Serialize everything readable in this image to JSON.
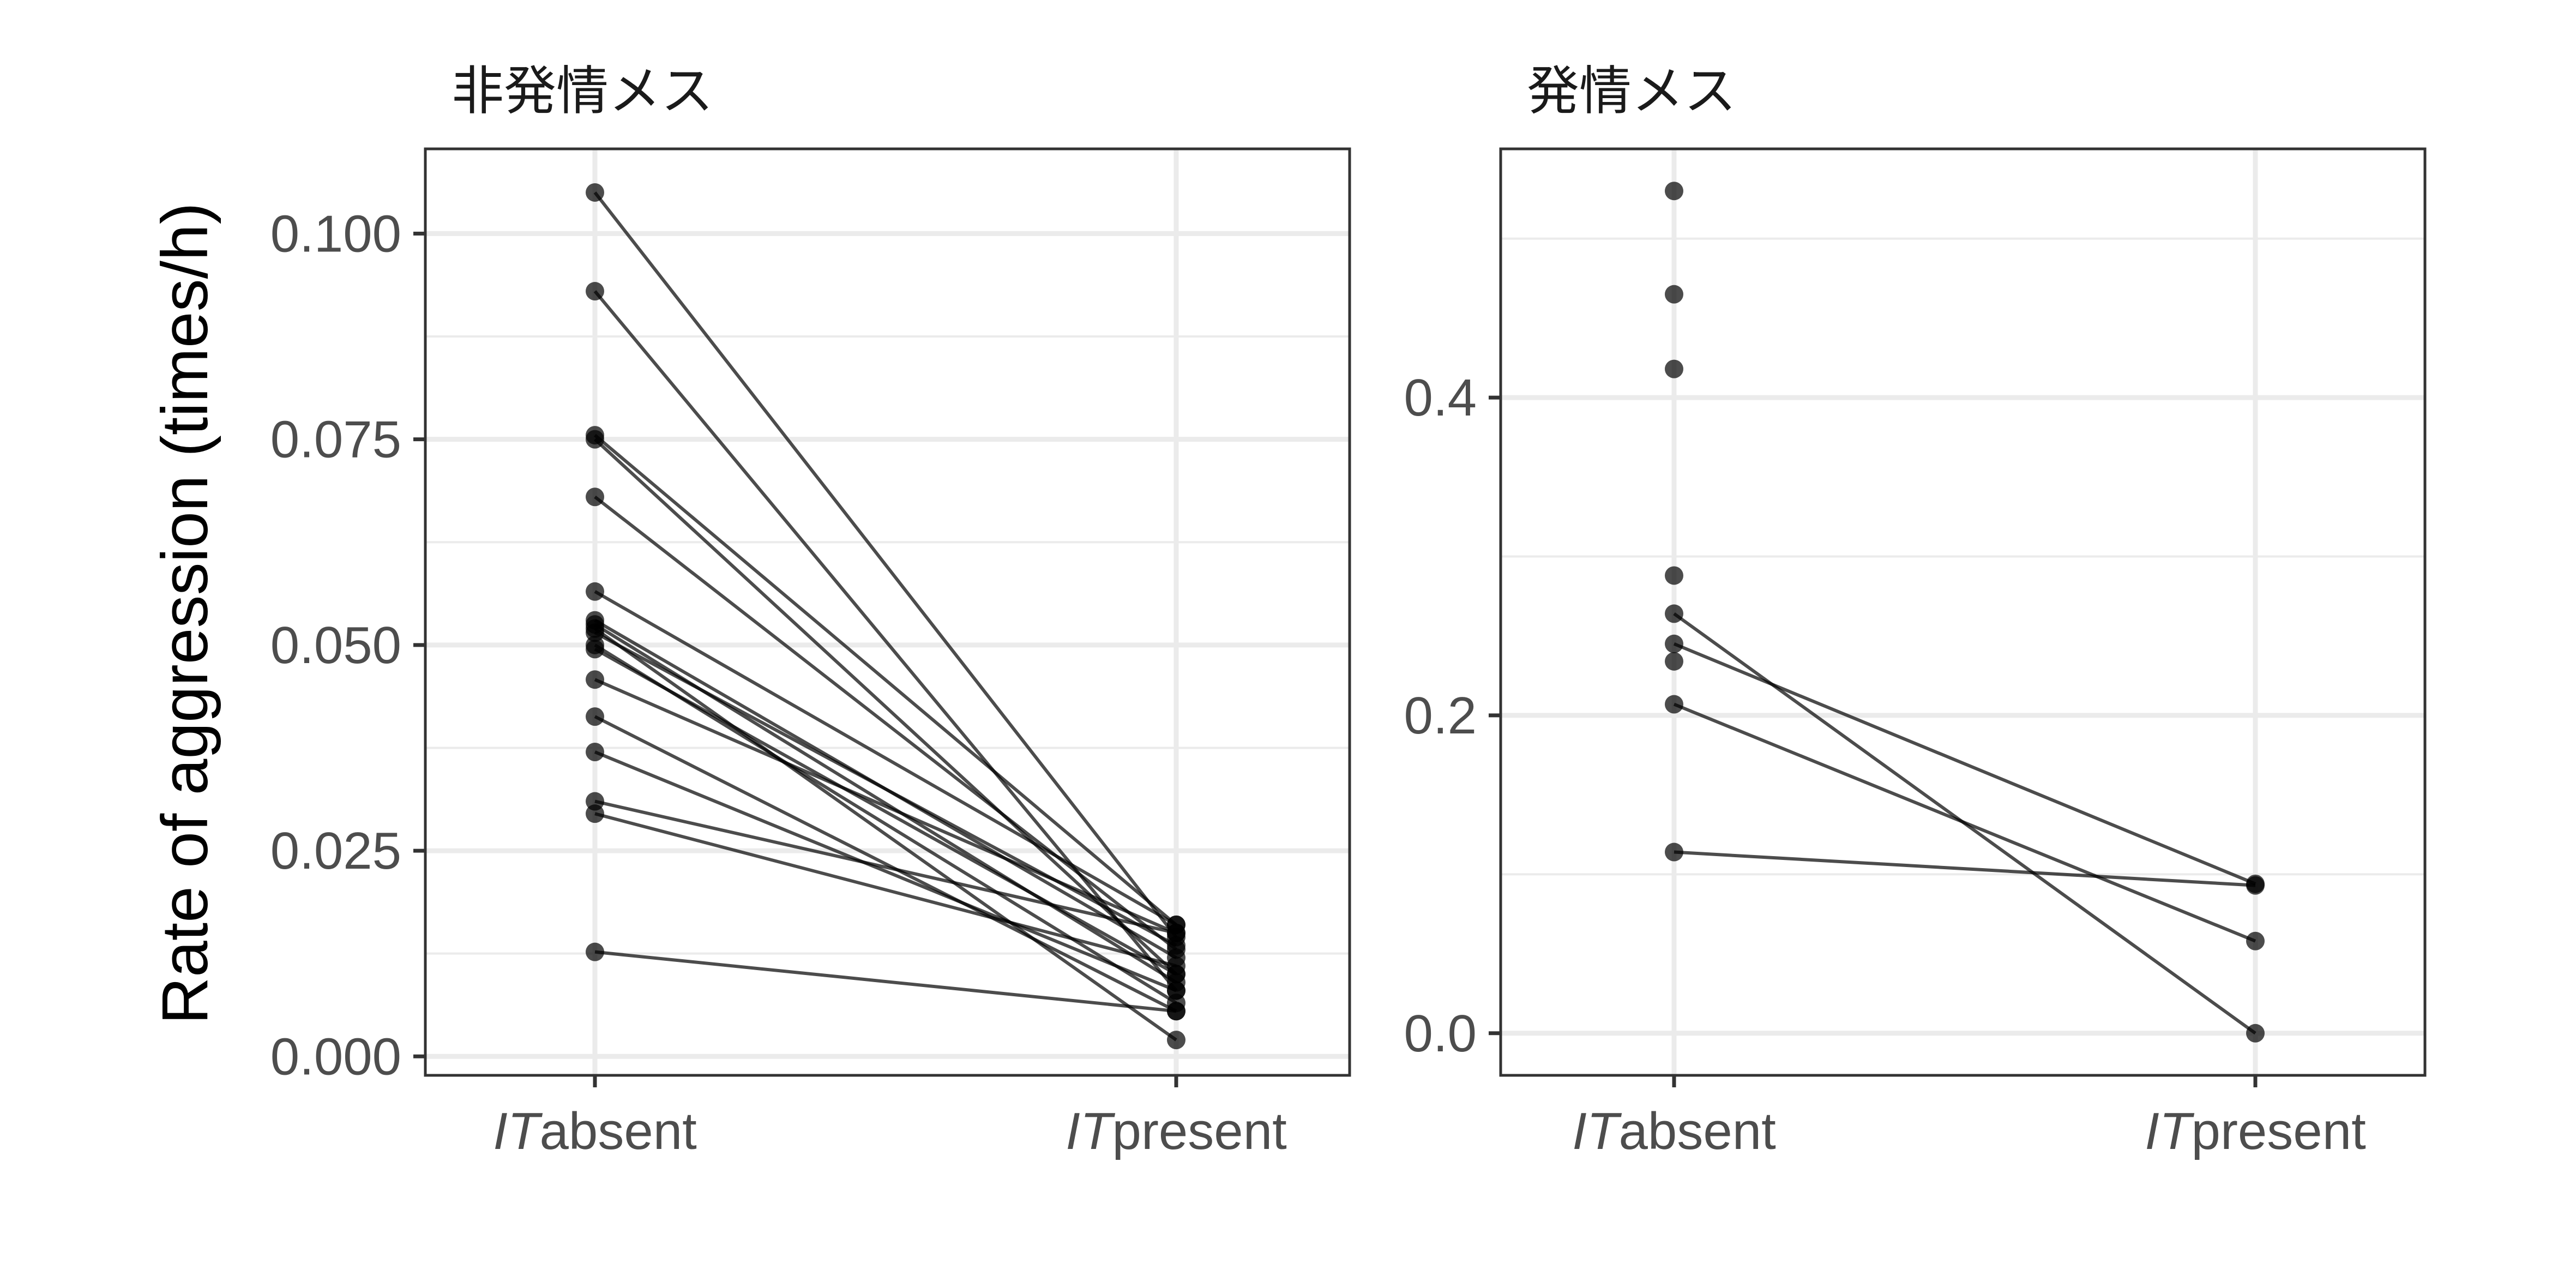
{
  "chart_data": {
    "ylabel": "Rate of aggression (times/h)",
    "panels": [
      {
        "type": "scatter",
        "title": "非発情メス",
        "categories": [
          "IT absent",
          "IT present"
        ],
        "xtick_parts": [
          {
            "italic": "IT",
            "rest": "absent"
          },
          {
            "italic": "IT",
            "rest": "present"
          }
        ],
        "ylim": [
          -0.0023,
          0.1103
        ],
        "yticks": [
          0.0,
          0.025,
          0.05,
          0.075,
          0.1
        ],
        "ytick_labels": [
          "0.000",
          "0.025",
          "0.050",
          "0.075",
          "0.100"
        ],
        "grid": true,
        "absent_only": [],
        "present_only": [],
        "pairs": [
          [
            0.105,
            0.0145
          ],
          [
            0.093,
            0.008
          ],
          [
            0.0755,
            0.016
          ],
          [
            0.075,
            0.01
          ],
          [
            0.068,
            0.013
          ],
          [
            0.0565,
            0.016
          ],
          [
            0.053,
            0.012
          ],
          [
            0.0525,
            0.009
          ],
          [
            0.0515,
            0.0135
          ],
          [
            0.05,
            0.0065
          ],
          [
            0.0495,
            0.01
          ],
          [
            0.0458,
            0.015
          ],
          [
            0.0413,
            0.0055
          ],
          [
            0.037,
            0.008
          ],
          [
            0.031,
            0.015
          ],
          [
            0.0295,
            0.011
          ],
          [
            0.0127,
            0.0055
          ],
          [
            0.052,
            0.002
          ]
        ]
      },
      {
        "type": "scatter",
        "title": "発情メス",
        "categories": [
          "IT absent",
          "IT present"
        ],
        "xtick_parts": [
          {
            "italic": "IT",
            "rest": "absent"
          },
          {
            "italic": "IT",
            "rest": "present"
          }
        ],
        "ylim": [
          -0.0265,
          0.5565
        ],
        "yticks": [
          0.0,
          0.2,
          0.4
        ],
        "ytick_labels": [
          "0.0",
          "0.2",
          "0.4"
        ],
        "grid": true,
        "absent_only": [
          0.53,
          0.465,
          0.418,
          0.288,
          0.234
        ],
        "present_only": [],
        "pairs": [
          [
            0.264,
            0.0
          ],
          [
            0.245,
            0.094
          ],
          [
            0.207,
            0.058
          ],
          [
            0.114,
            0.093
          ]
        ]
      }
    ]
  }
}
